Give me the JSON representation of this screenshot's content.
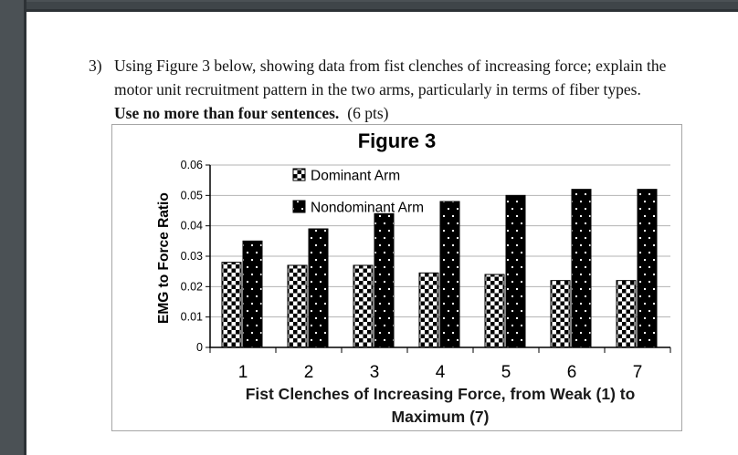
{
  "window": {
    "frame_color": "#4b5155",
    "frame_edge_color": "#2d3236",
    "top_bar_color": "#3f4549",
    "page_bg": "#ffffff"
  },
  "question": {
    "number": "3)",
    "line1": "Using Figure 3 below, showing data from fist clenches of increasing force; explain the",
    "line2": "motor unit recruitment pattern in the two arms, particularly in terms of fiber types.",
    "bold_instruction": "Use no more than four sentences.",
    "points": "(6 pts)"
  },
  "chart_data": {
    "type": "bar",
    "title": "Figure 3",
    "categories": [
      "1",
      "2",
      "3",
      "4",
      "5",
      "6",
      "7"
    ],
    "series": [
      {
        "name": "Dominant Arm",
        "pattern": "black-white-checkerboard",
        "values": [
          0.028,
          0.027,
          0.027,
          0.0245,
          0.024,
          0.022,
          0.022
        ]
      },
      {
        "name": "Nondominant Arm",
        "pattern": "black-with-white-dots",
        "values": [
          0.035,
          0.039,
          0.044,
          0.048,
          0.05,
          0.052,
          0.052
        ]
      }
    ],
    "xlabel": "Fist Clenches of Increasing Force, from Weak (1) to Maximum (7)",
    "xlabel_line1": "Fist Clenches of Increasing Force, from Weak (1) to",
    "xlabel_line2": "Maximum (7)",
    "ylabel": "EMG to Force Ratio",
    "ylim": [
      0,
      0.06
    ],
    "ytick_step": 0.01,
    "yticks": [
      "0",
      "0.01",
      "0.02",
      "0.03",
      "0.04",
      "0.05",
      "0.06"
    ],
    "grid": true,
    "gridline_color": "#b3b3b3",
    "axis_color": "#000000",
    "chart_border_color": "#a6a6a6",
    "legend_position": "top-left-inside"
  }
}
